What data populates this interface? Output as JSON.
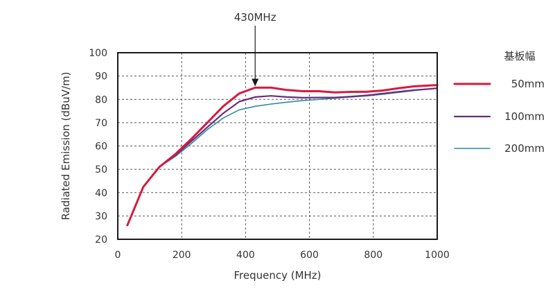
{
  "chart_data": {
    "type": "line",
    "title": "",
    "xlabel": "Frequency (MHz)",
    "ylabel": "Radiated Emission (dBuV/m)",
    "xlim": [
      0,
      1000
    ],
    "ylim": [
      20,
      100
    ],
    "xticks": [
      0,
      200,
      400,
      600,
      800,
      1000
    ],
    "yticks": [
      20,
      30,
      40,
      50,
      60,
      70,
      80,
      90,
      100
    ],
    "grid": true,
    "legend": {
      "title": "基板幅",
      "placement": "right-outside"
    },
    "annotation": {
      "text": "430MHz",
      "x": 430,
      "y": 85
    },
    "series": [
      {
        "name": "50mm",
        "color": "#d7193f",
        "x": [
          30,
          80,
          130,
          180,
          230,
          280,
          330,
          380,
          430,
          480,
          530,
          580,
          630,
          680,
          730,
          780,
          830,
          880,
          930,
          980,
          1000
        ],
        "values": [
          26.0,
          42.5,
          51.0,
          56.5,
          63.0,
          70.0,
          77.0,
          82.5,
          85.0,
          85.0,
          84.0,
          83.5,
          83.5,
          83.0,
          83.2,
          83.3,
          83.8,
          84.8,
          85.6,
          86.0,
          86.1
        ]
      },
      {
        "name": "100mm",
        "color": "#6a2c7a",
        "x": [
          30,
          80,
          130,
          180,
          230,
          280,
          330,
          380,
          430,
          480,
          530,
          580,
          630,
          680,
          730,
          780,
          830,
          880,
          930,
          980,
          1000
        ],
        "values": [
          26.0,
          42.5,
          51.0,
          56.0,
          62.0,
          68.0,
          74.0,
          79.0,
          81.0,
          81.5,
          81.0,
          80.7,
          80.8,
          80.8,
          81.2,
          81.7,
          82.5,
          83.3,
          84.0,
          84.5,
          84.8
        ]
      },
      {
        "name": "200mm",
        "color": "#2a8aa8",
        "x": [
          30,
          80,
          130,
          180,
          230,
          280,
          330,
          380,
          430,
          480,
          530,
          580,
          630,
          680,
          730,
          780,
          830,
          880,
          930,
          980,
          1000
        ],
        "values": [
          26.0,
          42.5,
          51.0,
          55.5,
          61.0,
          67.0,
          72.0,
          75.5,
          77.0,
          78.0,
          78.8,
          79.5,
          80.0,
          80.5,
          81.0,
          81.5,
          82.2,
          83.0,
          83.8,
          84.5,
          84.8
        ]
      }
    ]
  }
}
